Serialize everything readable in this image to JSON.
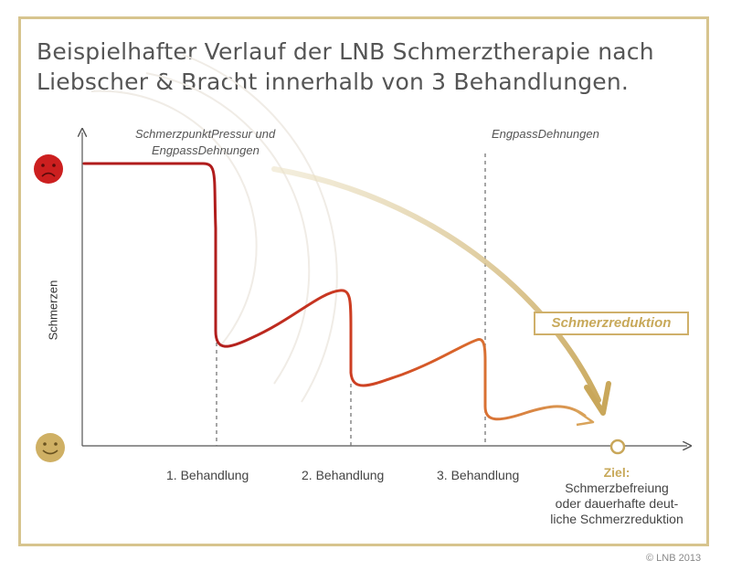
{
  "title": {
    "line1": "Beispielhafter Verlauf der LNB Schmerztherapie nach",
    "line2": "Liebscher & Bracht innerhalb von 3 Behandlungen."
  },
  "annotations": {
    "left": {
      "line1": "SchmerzpunktPressur und",
      "line2": "EngpassDehnungen"
    },
    "right": "EngpassDehnungen"
  },
  "y_axis_label": "Schmerzen",
  "x_ticks": [
    "1. Behandlung",
    "2. Behandlung",
    "3. Behandlung"
  ],
  "reduction_label": "Schmerzreduktion",
  "goal": {
    "label": "Ziel:",
    "line1": "Schmerzbefreiung",
    "line2": "oder dauerhafte deut-",
    "line3": "liche Schmerzreduktion"
  },
  "copyright": "© LNB 2013",
  "icons": {
    "top": "sad-face-icon",
    "bottom": "happy-face-icon"
  },
  "colors": {
    "frame": "#d7c48e",
    "sad": "#cc1f1f",
    "happy": "#cfb064",
    "curve_start": "#b01c1c",
    "curve_mid": "#d9652a",
    "curve_end": "#d9a35a",
    "gold": "#c8a95a"
  }
}
